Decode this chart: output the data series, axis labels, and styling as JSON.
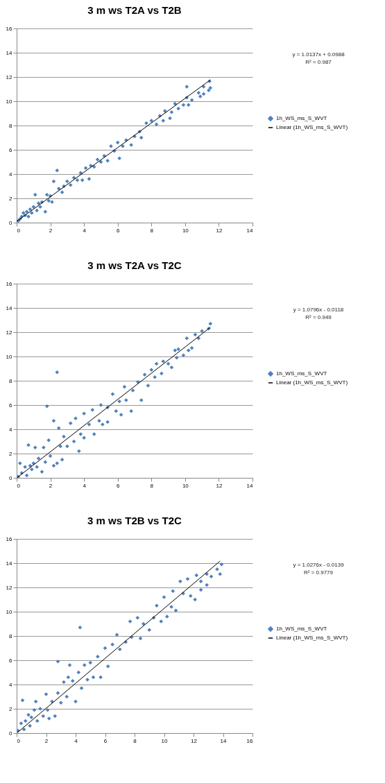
{
  "chart_data": [
    {
      "type": "scatter",
      "title": "3 m ws T2A vs T2B",
      "xlim": [
        0,
        14
      ],
      "xticks": [
        0,
        2,
        4,
        6,
        8,
        10,
        12,
        14
      ],
      "ylim": [
        0,
        16
      ],
      "yticks": [
        0,
        2,
        4,
        6,
        8,
        10,
        12,
        14,
        16
      ],
      "grid": "y",
      "legend": "right",
      "annotations": [
        "y = 1.0137x + 0.0988",
        "R² = 0.987"
      ],
      "series": [
        {
          "name": "1h_WS_ms_S_WVT",
          "marker": "diamond",
          "color": "#4f81bd",
          "x": [
            0.1,
            0.2,
            0.3,
            0.4,
            0.5,
            0.6,
            0.7,
            0.8,
            0.9,
            1.0,
            1.1,
            1.2,
            1.3,
            1.4,
            1.5,
            1.7,
            1.8,
            1.9,
            2.0,
            2.1,
            2.2,
            2.4,
            2.5,
            2.7,
            2.8,
            3.0,
            3.2,
            3.4,
            3.6,
            3.8,
            3.9,
            4.1,
            4.3,
            4.4,
            4.6,
            4.8,
            5.0,
            5.2,
            5.4,
            5.6,
            5.8,
            6.0,
            6.1,
            6.3,
            6.5,
            6.8,
            7.0,
            7.3,
            7.4,
            7.7,
            8.0,
            8.3,
            8.5,
            8.7,
            8.8,
            9.1,
            9.2,
            9.4,
            9.6,
            9.9,
            10.1,
            10.1,
            10.2,
            10.4,
            10.8,
            10.9,
            11.1,
            11.1,
            11.4,
            11.45,
            11.5
          ],
          "values": [
            0.15,
            0.3,
            0.5,
            0.8,
            0.6,
            0.9,
            0.5,
            1.1,
            0.8,
            1.3,
            2.3,
            1.0,
            1.6,
            1.3,
            1.7,
            0.9,
            2.3,
            1.8,
            2.2,
            1.7,
            3.4,
            4.3,
            2.8,
            2.5,
            3.0,
            3.4,
            3.1,
            3.7,
            3.5,
            4.1,
            3.5,
            4.5,
            3.6,
            4.7,
            4.6,
            5.2,
            5.0,
            5.5,
            5.1,
            6.3,
            5.9,
            6.6,
            5.3,
            6.3,
            6.8,
            6.4,
            7.1,
            7.5,
            7.0,
            8.2,
            8.4,
            8.1,
            8.8,
            8.4,
            9.2,
            8.6,
            9.1,
            9.8,
            9.4,
            9.7,
            11.2,
            10.3,
            9.7,
            10.1,
            10.7,
            10.4,
            11.2,
            10.6,
            10.9,
            11.65,
            11.1
          ]
        },
        {
          "name": "Linear (1h_WS_ms_S_WVT)",
          "type": "line",
          "marker": "none",
          "color": "#000000",
          "line_style": "solid",
          "x": [
            0,
            11.5
          ],
          "values": [
            0.1,
            11.76
          ]
        }
      ]
    },
    {
      "type": "scatter",
      "title": "3 m ws T2A vs T2C",
      "xlim": [
        0,
        14
      ],
      "xticks": [
        0,
        2,
        4,
        6,
        8,
        10,
        12,
        14
      ],
      "ylim": [
        0,
        16
      ],
      "yticks": [
        0,
        2,
        4,
        6,
        8,
        10,
        12,
        14,
        16
      ],
      "grid": "y",
      "legend": "right",
      "annotations": [
        "y = 1.0796x - 0.0118",
        "R² = 0.949"
      ],
      "series": [
        {
          "name": "1h_WS_ms_S_WVT",
          "marker": "diamond",
          "color": "#4f81bd",
          "x": [
            0.1,
            0.2,
            0.3,
            0.5,
            0.6,
            0.7,
            0.8,
            0.9,
            1.0,
            1.1,
            1.2,
            1.3,
            1.5,
            1.6,
            1.7,
            1.8,
            1.9,
            2.0,
            2.2,
            2.2,
            2.4,
            2.4,
            2.5,
            2.6,
            2.7,
            2.8,
            3.0,
            3.2,
            3.4,
            3.5,
            3.7,
            3.8,
            4.0,
            4.0,
            4.3,
            4.5,
            4.6,
            4.9,
            5.0,
            5.1,
            5.4,
            5.4,
            5.7,
            5.9,
            6.1,
            6.2,
            6.4,
            6.5,
            6.8,
            6.9,
            7.2,
            7.4,
            7.6,
            7.8,
            8.0,
            8.2,
            8.3,
            8.6,
            8.7,
            9.0,
            9.2,
            9.4,
            9.5,
            9.6,
            9.9,
            10.1,
            10.2,
            10.4,
            10.6,
            10.8,
            11.0,
            11.4,
            11.5
          ],
          "values": [
            0.1,
            1.2,
            0.4,
            0.9,
            0.2,
            2.7,
            1.0,
            0.7,
            1.2,
            2.5,
            0.9,
            1.6,
            0.5,
            2.5,
            1.3,
            5.9,
            3.1,
            1.8,
            4.7,
            1.0,
            8.7,
            1.2,
            4.1,
            2.6,
            1.5,
            3.4,
            2.6,
            4.5,
            3.0,
            4.9,
            2.2,
            3.6,
            5.3,
            3.3,
            4.4,
            5.6,
            3.6,
            4.7,
            6.0,
            4.4,
            5.8,
            4.6,
            6.9,
            5.5,
            6.3,
            5.2,
            7.5,
            6.4,
            5.5,
            7.2,
            7.9,
            6.4,
            8.5,
            7.6,
            8.9,
            8.3,
            9.4,
            8.6,
            9.6,
            9.4,
            9.1,
            10.5,
            9.9,
            10.6,
            10.1,
            11.5,
            10.5,
            10.7,
            11.8,
            11.5,
            12.1,
            12.3,
            12.7
          ]
        },
        {
          "name": "Linear (1h_WS_ms_S_WVT)",
          "type": "line",
          "marker": "none",
          "color": "#000000",
          "line_style": "solid",
          "x": [
            0.05,
            11.5
          ],
          "values": [
            0.04,
            12.4
          ]
        }
      ]
    },
    {
      "type": "scatter",
      "title": "3 m ws T2B vs T2C",
      "xlim": [
        0,
        16
      ],
      "xticks": [
        0,
        2,
        4,
        6,
        8,
        10,
        12,
        14,
        16
      ],
      "ylim": [
        0,
        16
      ],
      "yticks": [
        0,
        2,
        4,
        6,
        8,
        10,
        12,
        14,
        16
      ],
      "grid": "y",
      "legend": "right",
      "annotations": [
        "y = 1.0276x - 0.0139",
        "R² = 0.9779"
      ],
      "series": [
        {
          "name": "1h_WS_ms_S_WVT",
          "marker": "diamond",
          "color": "#4f81bd",
          "x": [
            0.1,
            0.3,
            0.4,
            0.5,
            0.6,
            0.8,
            0.9,
            1.0,
            1.2,
            1.3,
            1.4,
            1.6,
            1.8,
            2.0,
            2.1,
            2.2,
            2.4,
            2.6,
            2.8,
            2.8,
            3.0,
            3.2,
            3.4,
            3.5,
            3.6,
            3.8,
            4.0,
            4.2,
            4.3,
            4.4,
            4.6,
            4.8,
            5.0,
            5.2,
            5.5,
            5.7,
            6.0,
            6.2,
            6.5,
            6.8,
            7.0,
            7.4,
            7.7,
            7.8,
            8.2,
            8.4,
            8.6,
            9.0,
            9.3,
            9.5,
            9.8,
            10.0,
            10.2,
            10.5,
            10.6,
            10.8,
            11.1,
            11.3,
            11.6,
            11.8,
            12.1,
            12.2,
            12.5,
            12.5,
            12.9,
            12.9,
            13.2,
            13.6,
            13.8,
            13.9
          ],
          "values": [
            0.2,
            0.8,
            2.7,
            0.3,
            1.0,
            1.5,
            0.6,
            1.3,
            1.9,
            2.6,
            1.0,
            2.0,
            1.4,
            3.2,
            1.9,
            1.2,
            2.6,
            1.4,
            5.9,
            3.3,
            2.5,
            4.2,
            3.0,
            4.6,
            5.6,
            4.3,
            2.6,
            5.0,
            8.7,
            3.7,
            5.6,
            4.4,
            5.8,
            4.6,
            6.3,
            4.6,
            7.0,
            5.5,
            7.3,
            8.1,
            6.9,
            7.5,
            9.2,
            7.9,
            9.5,
            7.8,
            9.0,
            8.5,
            9.5,
            10.5,
            9.2,
            11.2,
            9.6,
            10.4,
            11.7,
            10.1,
            12.5,
            11.5,
            12.7,
            11.3,
            11.0,
            13.0,
            11.8,
            12.5,
            12.2,
            13.1,
            12.9,
            13.5,
            13.1,
            13.9
          ]
        },
        {
          "name": "Linear (1h_WS_ms_S_WVT)",
          "type": "line",
          "marker": "none",
          "color": "#000000",
          "line_style": "solid",
          "x": [
            0.05,
            13.8
          ],
          "values": [
            0.04,
            14.17
          ]
        }
      ]
    }
  ]
}
